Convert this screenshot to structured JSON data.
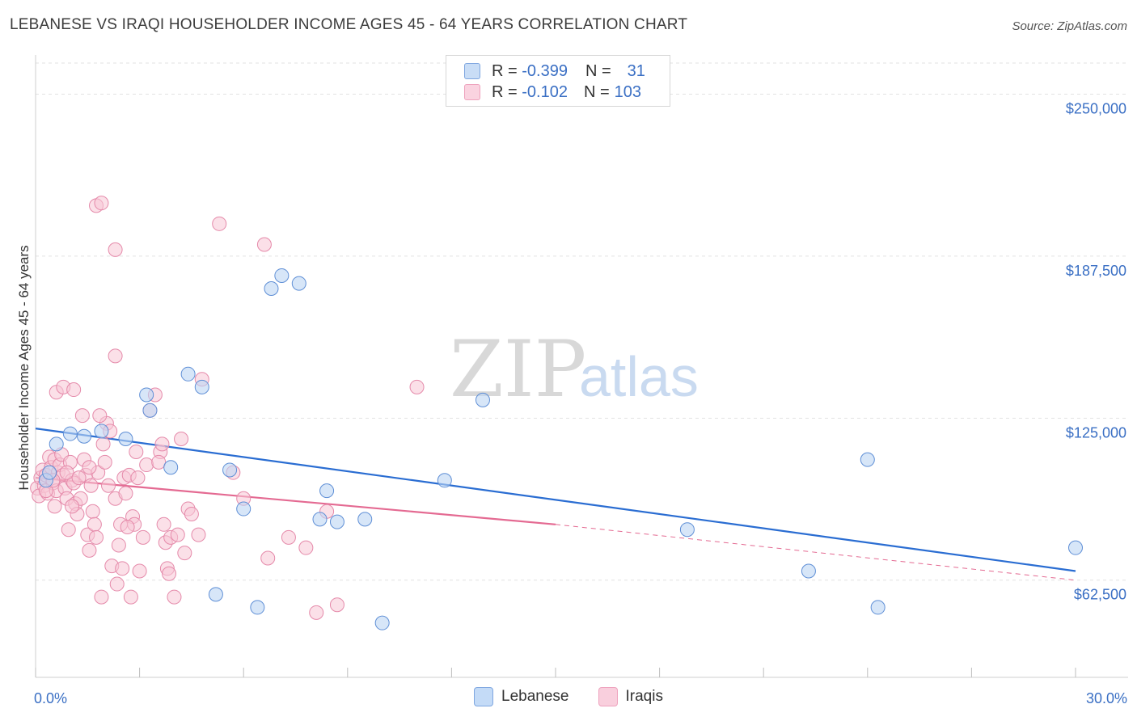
{
  "header": {
    "title": "LEBANESE VS IRAQI HOUSEHOLDER INCOME AGES 45 - 64 YEARS CORRELATION CHART",
    "source": "Source: ZipAtlas.com"
  },
  "watermark": {
    "zip": "ZIP",
    "atlas": "atlas"
  },
  "legend": {
    "rows": [
      {
        "r_label": "R =",
        "r_value": "-0.399",
        "n_label": "N =",
        "n_value": "31",
        "color": "#aecbf2"
      },
      {
        "r_label": "R =",
        "r_value": "-0.102",
        "n_label": "N =",
        "n_value": "103",
        "color": "#f6bdd0"
      }
    ]
  },
  "bottom_legend": [
    {
      "label": "Lebanese",
      "color": "#c4dbf7"
    },
    {
      "label": "Iraqis",
      "color": "#f9cfdd"
    }
  ],
  "colors": {
    "lebanese_fill": "#bcd5f3",
    "lebanese_stroke": "#5f8fd6",
    "lebanese_line": "#2a6dd2",
    "iraqi_fill": "#f8c6d6",
    "iraqi_stroke": "#e58aaa",
    "iraqi_line": "#e46a92",
    "tick_text": "#3a6fc4",
    "grid": "#e2e2e2"
  },
  "chart_data": {
    "type": "scatter",
    "title": "LEBANESE VS IRAQI HOUSEHOLDER INCOME AGES 45 - 64 YEARS CORRELATION CHART",
    "xlabel": "",
    "ylabel": "Householder Income Ages 45 - 64 years",
    "xlim": [
      0,
      30
    ],
    "ylim": [
      25000,
      262000
    ],
    "x_tick_labels": [
      "0.0%",
      "30.0%"
    ],
    "y_ticks": [
      62500,
      125000,
      187500,
      250000
    ],
    "y_tick_labels": [
      "$62,500",
      "$125,000",
      "$187,500",
      "$250,000"
    ],
    "series": [
      {
        "name": "Lebanese",
        "points": [
          [
            0.3,
            101000
          ],
          [
            0.4,
            104000
          ],
          [
            0.6,
            115000
          ],
          [
            1.0,
            119000
          ],
          [
            1.4,
            118000
          ],
          [
            1.9,
            120000
          ],
          [
            2.6,
            117000
          ],
          [
            3.2,
            134000
          ],
          [
            3.3,
            128000
          ],
          [
            3.9,
            106000
          ],
          [
            4.4,
            142000
          ],
          [
            4.8,
            137000
          ],
          [
            5.2,
            57000
          ],
          [
            5.6,
            105000
          ],
          [
            6.0,
            90000
          ],
          [
            6.4,
            52000
          ],
          [
            6.8,
            175000
          ],
          [
            7.1,
            180000
          ],
          [
            7.6,
            177000
          ],
          [
            8.2,
            86000
          ],
          [
            8.4,
            97000
          ],
          [
            8.7,
            85000
          ],
          [
            9.5,
            86000
          ],
          [
            10.0,
            46000
          ],
          [
            11.8,
            101000
          ],
          [
            12.9,
            132000
          ],
          [
            18.8,
            82000
          ],
          [
            22.3,
            66000
          ],
          [
            24.0,
            109000
          ],
          [
            24.3,
            52000
          ],
          [
            30.0,
            75000
          ]
        ]
      },
      {
        "name": "Iraqis",
        "points": [
          [
            0.05,
            98000
          ],
          [
            0.1,
            95000
          ],
          [
            0.15,
            102000
          ],
          [
            0.2,
            105000
          ],
          [
            0.25,
            99000
          ],
          [
            0.3,
            103000
          ],
          [
            0.35,
            96000
          ],
          [
            0.4,
            110000
          ],
          [
            0.45,
            106000
          ],
          [
            0.5,
            100000
          ],
          [
            0.55,
            109000
          ],
          [
            0.6,
            97000
          ],
          [
            0.65,
            104000
          ],
          [
            0.7,
            107000
          ],
          [
            0.75,
            111000
          ],
          [
            0.8,
            103000
          ],
          [
            0.85,
            98000
          ],
          [
            0.9,
            94000
          ],
          [
            0.95,
            82000
          ],
          [
            1.0,
            108000
          ],
          [
            1.05,
            101000
          ],
          [
            1.1,
            100000
          ],
          [
            1.15,
            92000
          ],
          [
            1.2,
            88000
          ],
          [
            1.3,
            94000
          ],
          [
            1.35,
            126000
          ],
          [
            1.4,
            109000
          ],
          [
            1.45,
            103000
          ],
          [
            1.5,
            80000
          ],
          [
            1.55,
            74000
          ],
          [
            1.6,
            99000
          ],
          [
            1.65,
            89000
          ],
          [
            1.7,
            84000
          ],
          [
            1.75,
            79000
          ],
          [
            1.8,
            104000
          ],
          [
            1.9,
            56000
          ],
          [
            1.95,
            115000
          ],
          [
            2.0,
            108000
          ],
          [
            2.05,
            123000
          ],
          [
            2.1,
            99000
          ],
          [
            2.2,
            68000
          ],
          [
            2.3,
            94000
          ],
          [
            2.35,
            61000
          ],
          [
            2.4,
            76000
          ],
          [
            2.45,
            84000
          ],
          [
            2.5,
            67000
          ],
          [
            2.55,
            102000
          ],
          [
            2.6,
            96000
          ],
          [
            2.7,
            103000
          ],
          [
            2.75,
            56000
          ],
          [
            2.8,
            87000
          ],
          [
            2.85,
            84000
          ],
          [
            2.9,
            112000
          ],
          [
            3.0,
            66000
          ],
          [
            3.1,
            79000
          ],
          [
            3.2,
            107000
          ],
          [
            3.3,
            128000
          ],
          [
            3.45,
            134000
          ],
          [
            3.6,
            112000
          ],
          [
            3.65,
            115000
          ],
          [
            3.7,
            84000
          ],
          [
            3.75,
            77000
          ],
          [
            3.8,
            67000
          ],
          [
            3.85,
            65000
          ],
          [
            3.9,
            79000
          ],
          [
            4.0,
            56000
          ],
          [
            4.1,
            80000
          ],
          [
            4.2,
            117000
          ],
          [
            4.3,
            73000
          ],
          [
            4.4,
            90000
          ],
          [
            4.5,
            88000
          ],
          [
            4.7,
            80000
          ],
          [
            4.8,
            140000
          ],
          [
            1.75,
            207000
          ],
          [
            1.9,
            208000
          ],
          [
            2.3,
            190000
          ],
          [
            5.3,
            200000
          ],
          [
            6.6,
            192000
          ],
          [
            2.3,
            149000
          ],
          [
            0.6,
            135000
          ],
          [
            0.8,
            137000
          ],
          [
            1.1,
            136000
          ],
          [
            11.0,
            137000
          ],
          [
            5.7,
            104000
          ],
          [
            6.0,
            94000
          ],
          [
            6.7,
            71000
          ],
          [
            7.3,
            79000
          ],
          [
            7.8,
            75000
          ],
          [
            8.1,
            50000
          ],
          [
            8.4,
            89000
          ],
          [
            8.7,
            53000
          ],
          [
            0.3,
            97000
          ],
          [
            0.5,
            101000
          ],
          [
            0.9,
            104000
          ],
          [
            1.25,
            102000
          ],
          [
            1.05,
            91000
          ],
          [
            2.65,
            83000
          ],
          [
            3.55,
            108000
          ],
          [
            2.95,
            102000
          ],
          [
            1.85,
            126000
          ],
          [
            0.55,
            91000
          ],
          [
            1.55,
            106000
          ],
          [
            2.15,
            120000
          ]
        ]
      }
    ],
    "trendlines": [
      {
        "name": "Lebanese",
        "x_start": 0.0,
        "y_start": 121000,
        "x_end": 30.0,
        "y_end": 66000,
        "style": "solid"
      },
      {
        "name": "Iraqis",
        "x_start": 0.0,
        "y_start": 102000,
        "x_end": 15.0,
        "y_end": 84000,
        "style": "solid"
      },
      {
        "name": "Iraqis",
        "x_start": 15.0,
        "y_start": 84000,
        "x_end": 30.0,
        "y_end": 62500,
        "style": "dashed"
      }
    ]
  }
}
